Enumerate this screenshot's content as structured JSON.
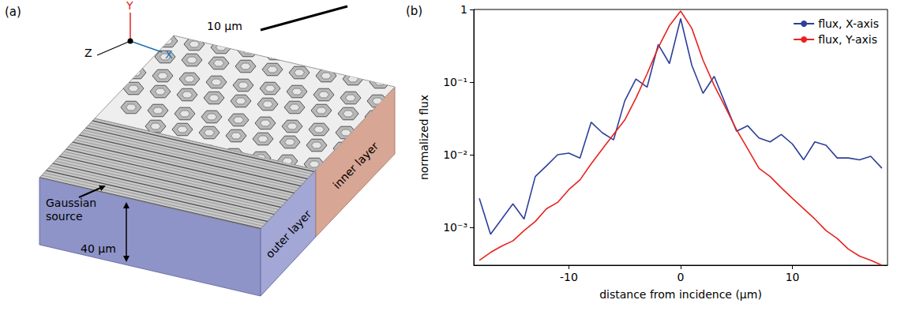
{
  "diagram": {
    "panel_label": "(a)",
    "axes": {
      "x": "X",
      "y": "Y",
      "z": "Z"
    },
    "scale_bar": "10 μm",
    "thickness": "40 μm",
    "source": "Gaussian source",
    "layers": [
      "outer layer",
      "inner layer"
    ]
  },
  "chart_data": {
    "panel_label": "(b)",
    "type": "line",
    "xlabel": "distance from incidence (μm)",
    "ylabel": "normalized flux",
    "x": [
      -18,
      -17,
      -16,
      -15,
      -14,
      -13,
      -12,
      -11,
      -10,
      -9,
      -8,
      -7,
      -6,
      -5,
      -4,
      -3,
      -2,
      -1,
      0,
      1,
      2,
      3,
      4,
      5,
      6,
      7,
      8,
      9,
      10,
      11,
      12,
      13,
      14,
      15,
      16,
      17,
      18
    ],
    "xlim": [
      -18.5,
      18.5
    ],
    "xticks": [
      -10,
      0,
      10
    ],
    "ylim": [
      0.0003,
      1
    ],
    "yticks": [
      {
        "value": 0.001,
        "label": "10⁻³"
      },
      {
        "value": 0.01,
        "label": "10⁻²"
      },
      {
        "value": 0.1,
        "label": "10⁻¹"
      },
      1
    ],
    "log": "y",
    "grid": false,
    "legend": "upper right",
    "series": [
      {
        "name": "flux, X-axis",
        "color": "#2e3f98",
        "values": [
          0.0025,
          0.0008,
          0.0013,
          0.0021,
          0.0013,
          0.005,
          0.007,
          0.01,
          0.0105,
          0.009,
          0.028,
          0.02,
          0.016,
          0.055,
          0.11,
          0.085,
          0.33,
          0.18,
          0.75,
          0.17,
          0.07,
          0.12,
          0.05,
          0.021,
          0.025,
          0.017,
          0.015,
          0.019,
          0.014,
          0.0085,
          0.015,
          0.0135,
          0.009,
          0.009,
          0.0085,
          0.0095,
          0.0065
        ]
      },
      {
        "name": "flux, Y-axis",
        "color": "#e8231f",
        "values": [
          0.00035,
          0.00045,
          0.00055,
          0.00065,
          0.0009,
          0.0012,
          0.0018,
          0.0022,
          0.0033,
          0.0045,
          0.0075,
          0.012,
          0.019,
          0.03,
          0.06,
          0.13,
          0.3,
          0.6,
          0.95,
          0.55,
          0.2,
          0.09,
          0.045,
          0.022,
          0.012,
          0.0065,
          0.005,
          0.0035,
          0.0025,
          0.0018,
          0.0013,
          0.0009,
          0.0007,
          0.0005,
          0.0004,
          0.00035,
          0.0003
        ]
      }
    ]
  }
}
